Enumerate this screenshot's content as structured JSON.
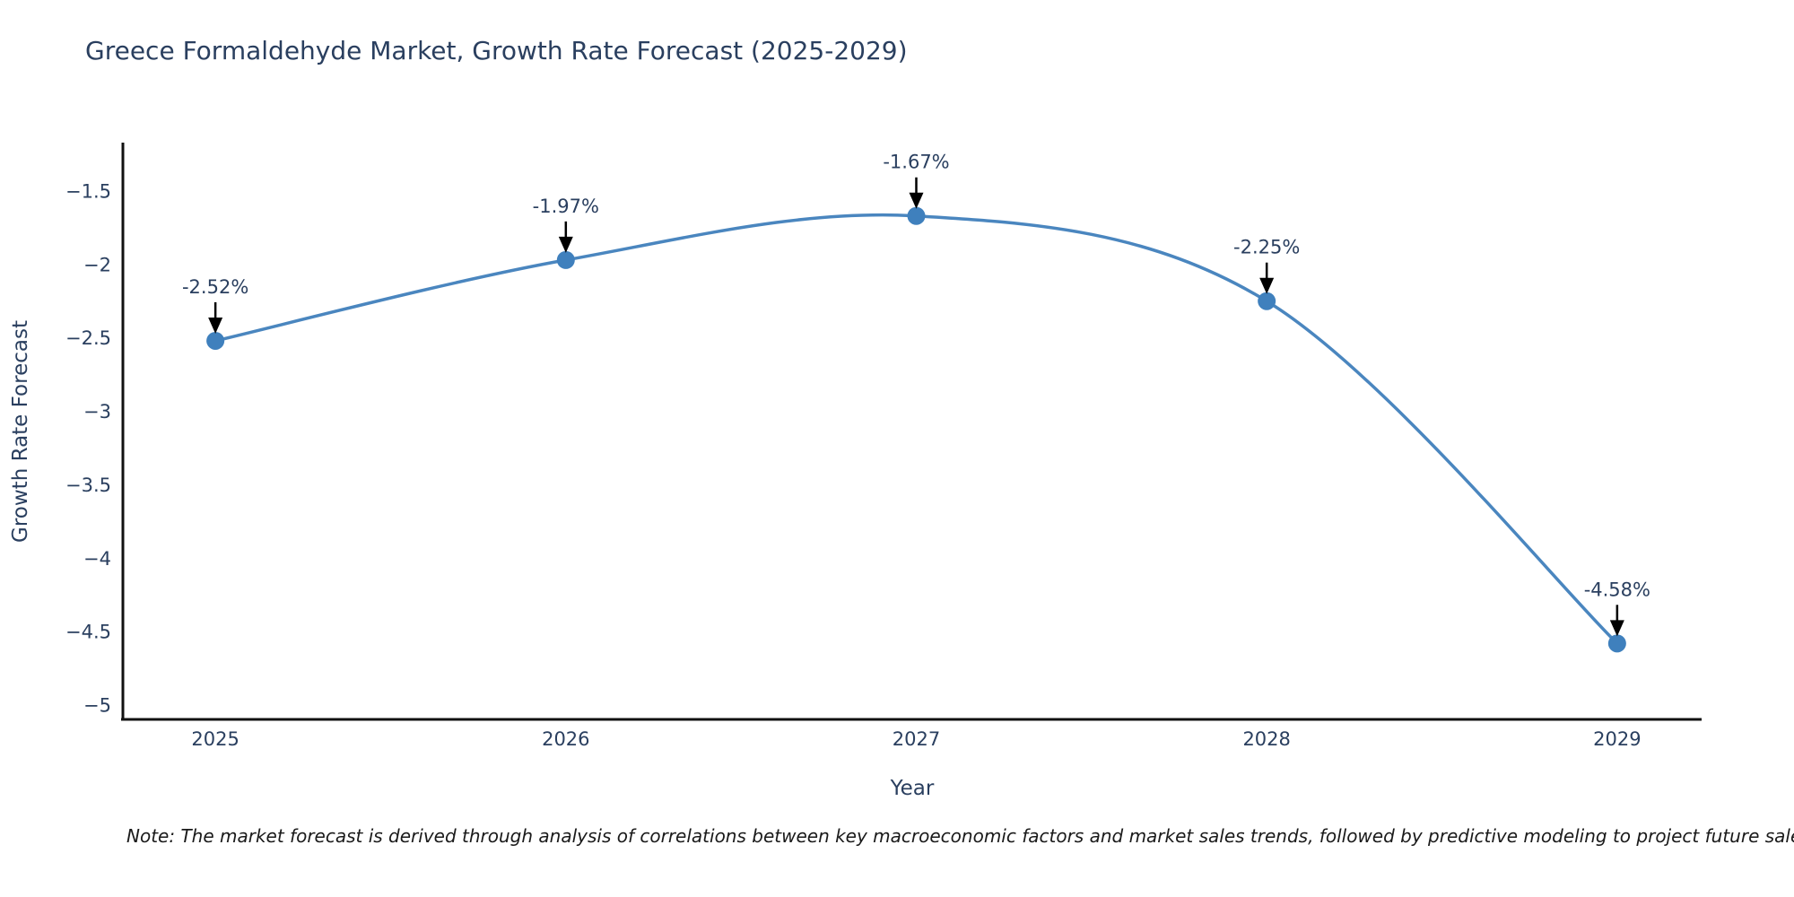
{
  "chart_data": {
    "type": "line",
    "title": "Greece Formaldehyde Market, Growth Rate Forecast (2025-2029)",
    "xlabel": "Year",
    "ylabel": "Growth Rate Forecast",
    "categories": [
      2025,
      2026,
      2027,
      2028,
      2029
    ],
    "series": [
      {
        "name": "Growth Rate Forecast",
        "values": [
          -2.52,
          -1.97,
          -1.67,
          -2.25,
          -4.58
        ],
        "point_labels": [
          "-2.52%",
          "-1.97%",
          "-1.67%",
          "-2.25%",
          "-4.58%"
        ]
      }
    ],
    "x_tick_labels": [
      "2025",
      "2026",
      "2027",
      "2028",
      "2029"
    ],
    "y_tick_values": [
      -1.5,
      -2,
      -2.5,
      -3,
      -3.5,
      -4,
      -4.5,
      -5
    ],
    "y_tick_labels": [
      "−1.5",
      "−2",
      "−2.5",
      "−3",
      "−3.5",
      "−4",
      "−4.5",
      "−5"
    ],
    "x_range": [
      2024.736,
      2029.241
    ],
    "y_range": [
      -5.097,
      -1.177
    ],
    "grid": false,
    "legend": "none",
    "line_shape": "spline",
    "colors": {
      "line": "#4a86bf",
      "marker": "#3f80bd",
      "arrow": "#000000",
      "axis": "#111111",
      "text": "#2a3f5f",
      "note_text": "#1a1a1a",
      "background": "#ffffff"
    },
    "note": "Note: The market forecast is derived through analysis of correlations between key macroeconomic factors and market sales trends, followed by predictive modeling to project future sales."
  }
}
